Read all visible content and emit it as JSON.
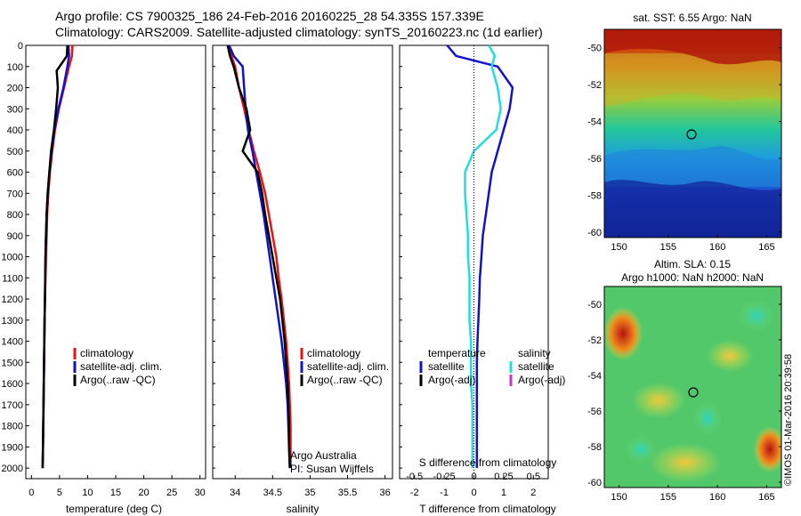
{
  "header": {
    "title_line1": "Argo profile: CS 7900325_186 24-Feb-2016 20160225_28 54.335S 157.339E",
    "title_line2": "Climatology: CARS2009. Satellite-adjusted climatology: synTS_20160223.nc (1d earlier)"
  },
  "colors": {
    "climatology": "#ee1111",
    "satellite": "#1111cc",
    "argo": "#000000",
    "satellite_salinity": "#22dddd",
    "argo_salinity": "#cc33cc"
  },
  "chart_data": [
    {
      "id": "temperature",
      "type": "line",
      "xlabel": "temperature (deg C)",
      "ylabel": "",
      "xlim": [
        -1,
        31
      ],
      "ylim": [
        2050,
        0
      ],
      "y_reversed": true,
      "xticks": [
        0,
        5,
        10,
        15,
        20,
        25,
        30
      ],
      "yticks": [
        0,
        100,
        200,
        300,
        400,
        500,
        600,
        700,
        800,
        900,
        1000,
        1100,
        1200,
        1300,
        1400,
        1500,
        1600,
        1700,
        1800,
        1900,
        2000
      ],
      "legend": [
        "climatology",
        "satellite-adj. clim.",
        "Argo(..raw -QC)"
      ],
      "series": [
        {
          "name": "climatology",
          "color": "#ee1111",
          "x": [
            7.3,
            7.2,
            6.7,
            5.8,
            4.9,
            4.2,
            3.7,
            3.3,
            3.0,
            2.8,
            2.7,
            2.6,
            2.5,
            2.4,
            2.35,
            2.3,
            2.25,
            2.2,
            2.15,
            2.1,
            2.05,
            2.0
          ],
          "y": [
            0,
            50,
            100,
            200,
            300,
            400,
            500,
            600,
            700,
            800,
            900,
            1000,
            1100,
            1200,
            1300,
            1400,
            1500,
            1600,
            1700,
            1800,
            1900,
            2000
          ]
        },
        {
          "name": "satellite-adj. clim.",
          "color": "#1111cc",
          "x": [
            6.6,
            6.7,
            6.4,
            5.7,
            4.8,
            4.1,
            3.6,
            3.2,
            2.9,
            2.7,
            2.6,
            2.5,
            2.45,
            2.4,
            2.35,
            2.3,
            2.25,
            2.2,
            2.15,
            2.1,
            2.05,
            2.0
          ],
          "y": [
            0,
            50,
            100,
            200,
            300,
            400,
            500,
            600,
            700,
            800,
            900,
            1000,
            1100,
            1200,
            1300,
            1400,
            1500,
            1600,
            1700,
            1800,
            1900,
            2000
          ]
        },
        {
          "name": "Argo(..raw -QC)",
          "color": "#000000",
          "x": [
            6.4,
            6.3,
            4.5,
            4.7,
            4.4,
            4.0,
            3.5,
            3.2,
            2.9,
            2.7,
            2.6,
            2.5,
            2.45,
            2.4,
            2.35,
            2.3,
            2.25,
            2.2,
            2.15,
            2.1,
            2.05,
            2.0
          ],
          "y": [
            0,
            50,
            120,
            200,
            300,
            400,
            500,
            600,
            700,
            800,
            900,
            1000,
            1100,
            1200,
            1300,
            1400,
            1500,
            1600,
            1700,
            1800,
            1900,
            2000
          ]
        }
      ]
    },
    {
      "id": "salinity",
      "type": "line",
      "xlabel": "salinity",
      "xlim": [
        33.7,
        36.1
      ],
      "ylim": [
        2050,
        0
      ],
      "y_reversed": true,
      "xticks": [
        34,
        34.5,
        35,
        35.5,
        36
      ],
      "legend": [
        "climatology",
        "satellite-adj. clim.",
        "Argo(..raw -QC)"
      ],
      "annotations": [
        "Argo Australia",
        "PI: Susan Wijffels"
      ],
      "series": [
        {
          "name": "climatology",
          "color": "#ee1111",
          "x": [
            33.92,
            33.95,
            34.0,
            34.05,
            34.12,
            34.18,
            34.25,
            34.33,
            34.4,
            34.45,
            34.5,
            34.55,
            34.58,
            34.62,
            34.65,
            34.68,
            34.7,
            34.72,
            34.73,
            34.74,
            34.74,
            34.74
          ],
          "y": [
            0,
            50,
            100,
            200,
            300,
            400,
            500,
            600,
            700,
            800,
            900,
            1000,
            1100,
            1200,
            1300,
            1400,
            1500,
            1600,
            1700,
            1800,
            1900,
            2000
          ]
        },
        {
          "name": "satellite-adj. clim.",
          "color": "#1111cc",
          "x": [
            33.92,
            33.98,
            34.1,
            34.12,
            34.14,
            34.17,
            34.23,
            34.28,
            34.33,
            34.38,
            34.42,
            34.46,
            34.5,
            34.54,
            34.58,
            34.62,
            34.65,
            34.68,
            34.7,
            34.71,
            34.72,
            34.73
          ],
          "y": [
            0,
            50,
            100,
            200,
            300,
            400,
            500,
            600,
            700,
            800,
            900,
            1000,
            1100,
            1200,
            1300,
            1400,
            1500,
            1600,
            1700,
            1800,
            1900,
            2000
          ]
        },
        {
          "name": "Argo(..raw -QC)",
          "color": "#000000",
          "x": [
            33.9,
            33.93,
            33.98,
            34.05,
            34.15,
            34.2,
            34.1,
            34.3,
            34.36,
            34.4,
            34.45,
            34.5,
            34.55,
            34.6,
            34.63,
            34.66,
            34.68,
            34.7,
            34.71,
            34.72,
            34.72,
            34.73
          ],
          "y": [
            0,
            50,
            100,
            200,
            300,
            400,
            500,
            600,
            700,
            800,
            900,
            1000,
            1100,
            1200,
            1300,
            1400,
            1500,
            1600,
            1700,
            1800,
            1900,
            2000
          ]
        }
      ]
    },
    {
      "id": "difference",
      "type": "line",
      "xlabel": "T difference from climatology",
      "xlabel_top": "S difference from climatology",
      "xlim": [
        -2.5,
        2.5
      ],
      "ylim": [
        2050,
        0
      ],
      "y_reversed": true,
      "xticks": [
        -2,
        -1,
        0,
        1,
        2
      ],
      "xticks_salinity": [
        -0.5,
        -0.25,
        0,
        0.25,
        0.5
      ],
      "legend_left_header": "temperature",
      "legend_right_header": "salinity",
      "legend_left": [
        "satellite",
        "Argo(-adj)"
      ],
      "legend_right": [
        "satellite",
        "Argo(-adj)"
      ],
      "series": [
        {
          "name": "T satellite",
          "color": "#1111cc",
          "x": [
            -0.9,
            -0.6,
            0.8,
            1.3,
            1.2,
            1.0,
            0.8,
            0.6,
            0.5,
            0.4,
            0.3,
            0.25,
            0.2,
            0.18,
            0.15,
            0.12,
            0.1,
            0.1,
            0.1,
            0.1,
            0.1,
            0.1
          ],
          "y": [
            0,
            50,
            100,
            200,
            300,
            400,
            500,
            600,
            700,
            800,
            900,
            1000,
            1100,
            1200,
            1300,
            1400,
            1500,
            1600,
            1700,
            1800,
            1900,
            2000
          ]
        },
        {
          "name": "S satellite",
          "color": "#22dddd",
          "x": [
            0.5,
            0.7,
            0.6,
            0.8,
            0.9,
            0.75,
            0.0,
            -0.3,
            -0.3,
            -0.25,
            -0.2,
            -0.2,
            -0.15,
            -0.15,
            -0.15,
            -0.1,
            -0.1,
            -0.1,
            -0.05,
            -0.05,
            -0.05,
            -0.05
          ],
          "y": [
            0,
            50,
            100,
            200,
            300,
            400,
            500,
            600,
            700,
            800,
            900,
            1000,
            1100,
            1200,
            1300,
            1400,
            1500,
            1600,
            1700,
            1800,
            1900,
            2000
          ]
        }
      ]
    }
  ],
  "maps": {
    "sst": {
      "title": "sat. SST: 6.55 Argo: NaN",
      "xticks": [
        "150",
        "155",
        "160",
        "165"
      ],
      "yticks": [
        "-50",
        "-52",
        "-54",
        "-56",
        "-58",
        "-60"
      ]
    },
    "sla": {
      "title_line1": "Altim. SLA: 0.15",
      "title_line2": "Argo h1000: NaN h2000: NaN",
      "xticks": [
        "150",
        "155",
        "160",
        "165"
      ],
      "yticks": [
        "-50",
        "-52",
        "-54",
        "-56",
        "-58",
        "-60"
      ]
    }
  },
  "footer_stamp": "©IMOS 01-Mar-2016 20:39:58"
}
